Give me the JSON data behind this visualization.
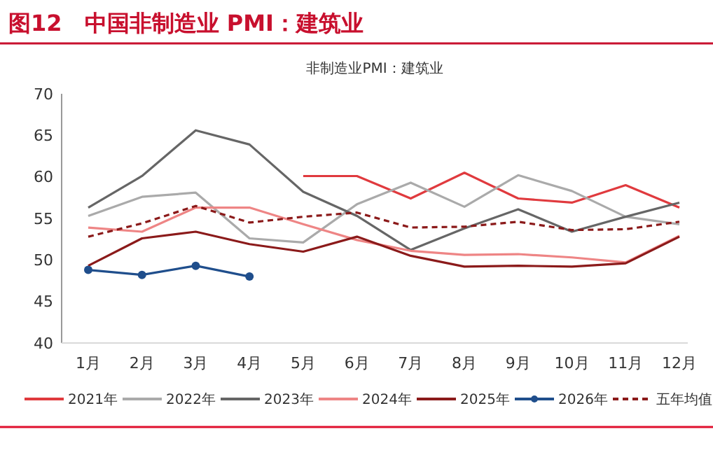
{
  "chart_data": {
    "type": "line",
    "title": "图12　中国非制造业 PMI：建筑业",
    "subtitle": "非制造业PMI：建筑业",
    "categories": [
      "1月",
      "2月",
      "3月",
      "4月",
      "5月",
      "6月",
      "7月",
      "8月",
      "9月",
      "10月",
      "11月",
      "12月"
    ],
    "series": [
      {
        "name": "2021年",
        "color": "#e03a3e",
        "values": [
          null,
          null,
          null,
          null,
          60.1,
          60.1,
          57.4,
          60.5,
          57.4,
          56.9,
          59.0,
          56.3
        ]
      },
      {
        "name": "2022年",
        "color": "#aaaaaa",
        "values": [
          55.3,
          57.6,
          58.1,
          52.6,
          52.1,
          56.7,
          59.3,
          56.4,
          60.2,
          58.3,
          55.2,
          54.3
        ]
      },
      {
        "name": "2023年",
        "color": "#666666",
        "values": [
          56.3,
          60.1,
          65.6,
          63.9,
          58.2,
          55.3,
          51.2,
          53.8,
          56.1,
          53.4,
          55.2,
          56.9
        ]
      },
      {
        "name": "2024年",
        "color": "#ee8585",
        "values": [
          53.9,
          53.4,
          56.3,
          56.3,
          54.3,
          52.4,
          51.1,
          50.6,
          50.7,
          50.3,
          49.7,
          52.9
        ]
      },
      {
        "name": "2025年",
        "color": "#8b1a1a",
        "values": [
          49.3,
          52.6,
          53.4,
          51.9,
          51.0,
          52.8,
          50.5,
          49.2,
          49.3,
          49.2,
          49.6,
          52.8
        ]
      },
      {
        "name": "2026年",
        "color": "#1f4e8c",
        "marker": "circle",
        "values": [
          48.8,
          48.2,
          49.3,
          48.0,
          null,
          null,
          null,
          null,
          null,
          null,
          null,
          null
        ]
      },
      {
        "name": "五年均值",
        "color": "#8b1a1a",
        "line_style": "dashed",
        "values": [
          52.8,
          54.4,
          56.5,
          54.5,
          55.2,
          55.7,
          53.9,
          54.0,
          54.6,
          53.6,
          53.7,
          54.6
        ]
      }
    ],
    "ylim": [
      40,
      70
    ],
    "yticks": [
      40,
      45,
      50,
      55,
      60,
      65,
      70
    ],
    "grid": false,
    "legend": "bottom"
  }
}
